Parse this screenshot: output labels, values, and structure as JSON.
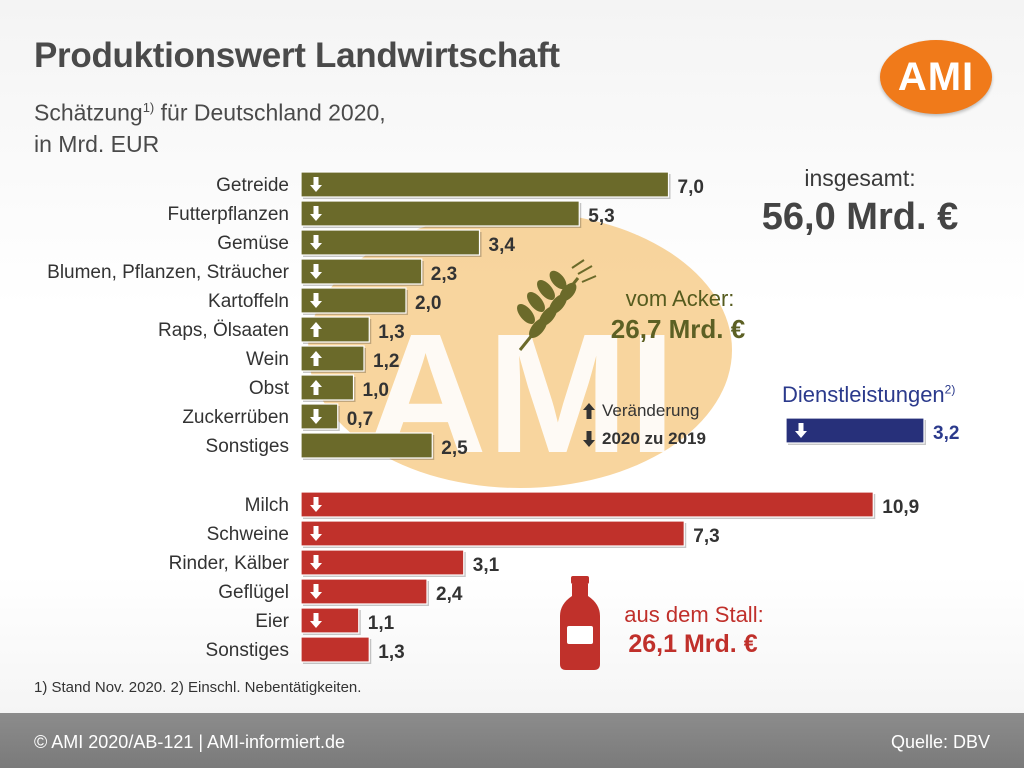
{
  "header": {
    "title": "Produktionswert Landwirtschaft",
    "subtitle_line1": "Schätzung",
    "subtitle_sup": "1)",
    "subtitle_line1_rest": " für Deutschland 2020,",
    "subtitle_line2": "in Mrd. EUR",
    "logo_text": "AMI",
    "watermark_text": "AMI"
  },
  "totals": {
    "overall_label": "insgesamt:",
    "overall_value": "56,0 Mrd. €",
    "acker_label": "vom Acker:",
    "acker_value": "26,7 Mrd. €",
    "stall_label": "aus dem Stall:",
    "stall_value": "26,1 Mrd. €",
    "dienst_label": "Dienstleistungen",
    "dienst_sup": "2)"
  },
  "legend": {
    "up_label": "Veränderung",
    "down_label": "2020 zu 2019"
  },
  "footnote": "1) Stand Nov. 2020. 2) Einschl. Nebentätigkeiten.",
  "footer": {
    "left": "© AMI 2020/AB-121 | AMI-informiert.de",
    "right": "Quelle: DBV"
  },
  "colors": {
    "crop_bar": "#6b6a2a",
    "livestock_bar": "#c0312b",
    "services_bar": "#27307a",
    "logo": "#f07a1a",
    "watermark": "#f2b24e"
  },
  "chart_data": [
    {
      "type": "bar",
      "orientation": "horizontal",
      "group": "vom Acker",
      "unit": "Mrd. EUR",
      "categories": [
        "Getreide",
        "Futterpflanzen",
        "Gemüse",
        "Blumen, Pflanzen, Sträucher",
        "Kartoffeln",
        "Raps, Ölsaaten",
        "Wein",
        "Obst",
        "Zuckerrüben",
        "Sonstiges"
      ],
      "values": [
        7.0,
        5.3,
        3.4,
        2.3,
        2.0,
        1.3,
        1.2,
        1.0,
        0.7,
        2.5
      ],
      "labels": [
        "7,0",
        "5,3",
        "3,4",
        "2,3",
        "2,0",
        "1,3",
        "1,2",
        "1,0",
        "0,7",
        "2,5"
      ],
      "change_2020_vs_2019": [
        "down",
        "down",
        "down",
        "down",
        "down",
        "up",
        "up",
        "up",
        "down",
        "none"
      ]
    },
    {
      "type": "bar",
      "orientation": "horizontal",
      "group": "aus dem Stall",
      "unit": "Mrd. EUR",
      "categories": [
        "Milch",
        "Schweine",
        "Rinder, Kälber",
        "Geflügel",
        "Eier",
        "Sonstiges"
      ],
      "values": [
        10.9,
        7.3,
        3.1,
        2.4,
        1.1,
        1.3
      ],
      "labels": [
        "10,9",
        "7,3",
        "3,1",
        "2,4",
        "1,1",
        "1,3"
      ],
      "change_2020_vs_2019": [
        "down",
        "down",
        "down",
        "down",
        "down",
        "none"
      ]
    },
    {
      "type": "bar",
      "orientation": "horizontal",
      "group": "Dienstleistungen",
      "unit": "Mrd. EUR",
      "categories": [
        "Dienstleistungen"
      ],
      "values": [
        3.2
      ],
      "labels": [
        "3,2"
      ],
      "change_2020_vs_2019": [
        "down"
      ]
    }
  ]
}
